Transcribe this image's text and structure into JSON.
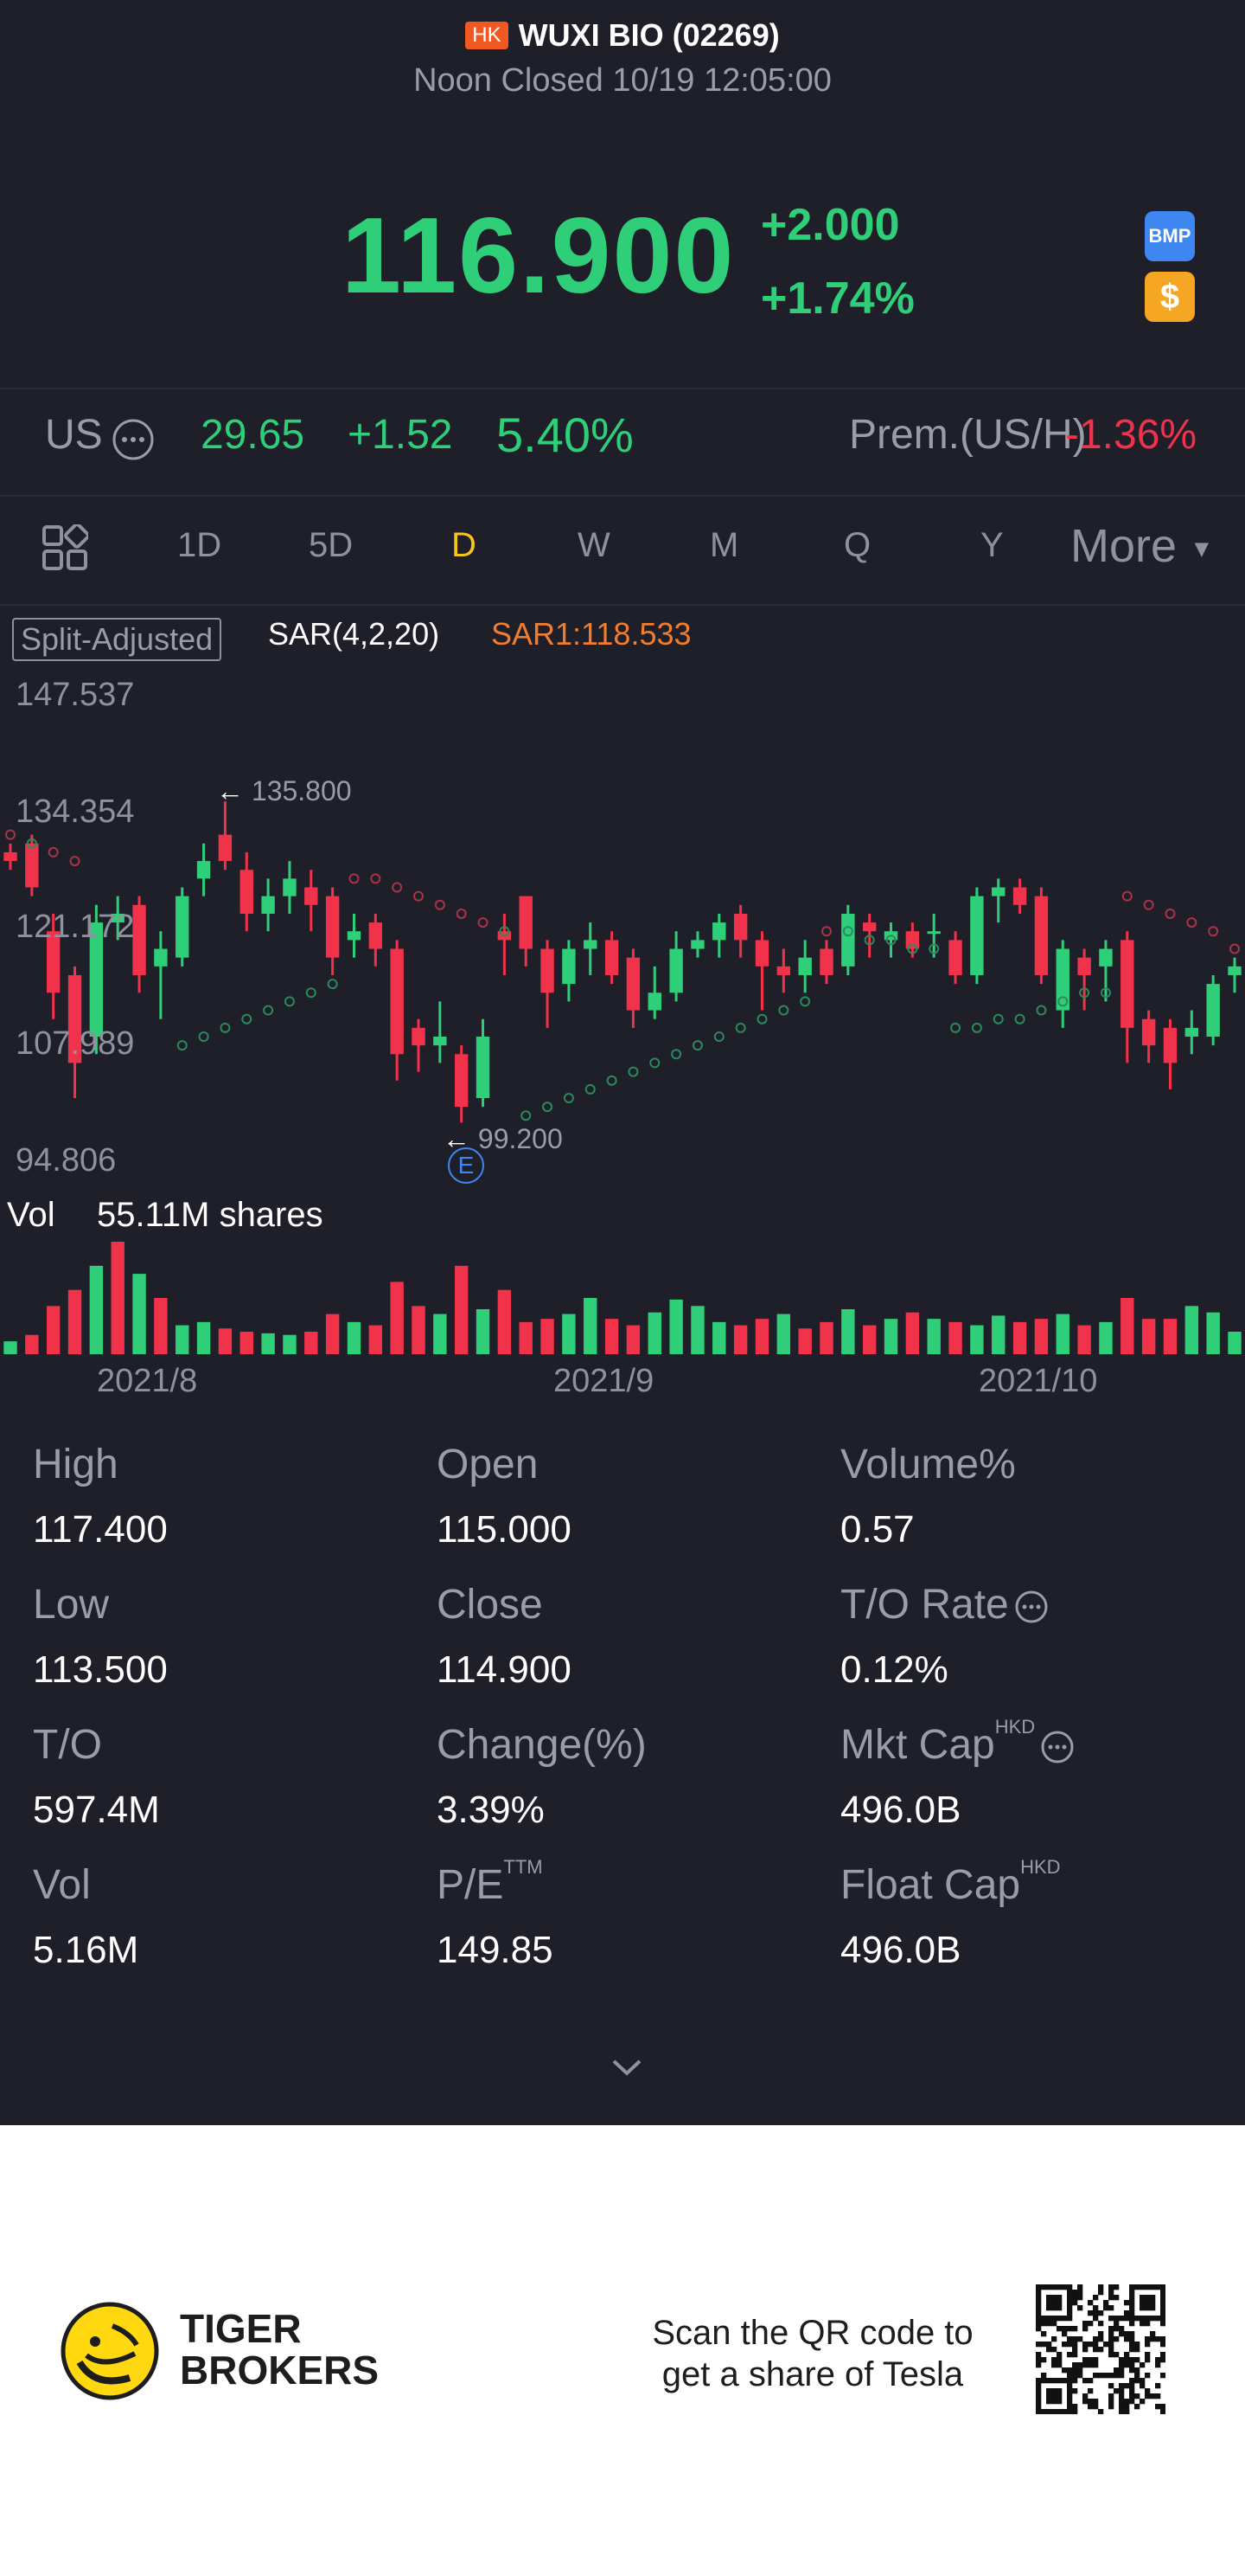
{
  "header": {
    "market_badge": "HK",
    "title": "WUXI BIO (02269)",
    "subtitle": "Noon Closed 10/19 12:05:00"
  },
  "quote": {
    "price": "116.900",
    "change": "+2.000",
    "change_pct": "+1.74%",
    "badge_bmp": "BMP",
    "badge_dollar": "$"
  },
  "us_row": {
    "label": "US",
    "price": "29.65",
    "change": "+1.52",
    "change_pct": "5.40%",
    "premium_label": "Prem.(US/H)",
    "premium_value": "-1.36%"
  },
  "tabs": {
    "items": [
      "1D",
      "5D",
      "D",
      "W",
      "M",
      "Q",
      "Y"
    ],
    "active": "D",
    "more": "More"
  },
  "chart": {
    "split_label": "Split-Adjusted",
    "indicator": "SAR(4,2,20)",
    "indicator_value": "SAR1:118.533",
    "y_labels": [
      "147.537",
      "134.354",
      "121.172",
      "107.989",
      "94.806"
    ],
    "high_marker": "135.800",
    "low_marker": "99.200",
    "event_marker": "E",
    "vol_label": "Vol",
    "vol_value": "55.11M shares",
    "x_labels": [
      "2021/8",
      "2021/9",
      "2021/10"
    ],
    "up_color": "#2fcf7a",
    "down_color": "#f0324b"
  },
  "chart_data": {
    "type": "candlestick",
    "y_axis_ticks": [
      147.537,
      134.354,
      121.172,
      107.989,
      94.806
    ],
    "ylim": [
      94.806,
      147.537
    ],
    "x_tick_labels": [
      "2021/8",
      "2021/9",
      "2021/10"
    ],
    "marked_high": 135.8,
    "marked_low": 99.2,
    "sar_last": 118.533,
    "candles": [
      {
        "o": 130,
        "c": 129,
        "h": 131,
        "l": 128
      },
      {
        "o": 131,
        "c": 126,
        "h": 132,
        "l": 125
      },
      {
        "o": 121,
        "c": 114,
        "h": 123,
        "l": 111
      },
      {
        "o": 116,
        "c": 106,
        "h": 117,
        "l": 102
      },
      {
        "o": 109,
        "c": 122,
        "h": 124,
        "l": 107
      },
      {
        "o": 122,
        "c": 123,
        "h": 125,
        "l": 120
      },
      {
        "o": 124,
        "c": 116,
        "h": 125,
        "l": 114
      },
      {
        "o": 117,
        "c": 119,
        "h": 121,
        "l": 111
      },
      {
        "o": 118,
        "c": 125,
        "h": 126,
        "l": 117
      },
      {
        "o": 127,
        "c": 129,
        "h": 131,
        "l": 125
      },
      {
        "o": 132,
        "c": 129,
        "h": 135.8,
        "l": 128
      },
      {
        "o": 128,
        "c": 123,
        "h": 130,
        "l": 121
      },
      {
        "o": 123,
        "c": 125,
        "h": 127,
        "l": 121
      },
      {
        "o": 125,
        "c": 127,
        "h": 129,
        "l": 123
      },
      {
        "o": 126,
        "c": 124,
        "h": 128,
        "l": 121
      },
      {
        "o": 125,
        "c": 118,
        "h": 126,
        "l": 116
      },
      {
        "o": 120,
        "c": 121,
        "h": 123,
        "l": 118
      },
      {
        "o": 122,
        "c": 119,
        "h": 123,
        "l": 117
      },
      {
        "o": 119,
        "c": 107,
        "h": 120,
        "l": 104
      },
      {
        "o": 110,
        "c": 108,
        "h": 111,
        "l": 105
      },
      {
        "o": 108,
        "c": 109,
        "h": 113,
        "l": 106
      },
      {
        "o": 107,
        "c": 101,
        "h": 108,
        "l": 99.2
      },
      {
        "o": 102,
        "c": 109,
        "h": 111,
        "l": 101
      },
      {
        "o": 121,
        "c": 120,
        "h": 123,
        "l": 116
      },
      {
        "o": 125,
        "c": 119,
        "h": 125,
        "l": 117
      },
      {
        "o": 119,
        "c": 114,
        "h": 120,
        "l": 110
      },
      {
        "o": 115,
        "c": 119,
        "h": 120,
        "l": 113
      },
      {
        "o": 119,
        "c": 120,
        "h": 122,
        "l": 116
      },
      {
        "o": 120,
        "c": 116,
        "h": 121,
        "l": 115
      },
      {
        "o": 118,
        "c": 112,
        "h": 119,
        "l": 110
      },
      {
        "o": 112,
        "c": 114,
        "h": 117,
        "l": 111
      },
      {
        "o": 114,
        "c": 119,
        "h": 121,
        "l": 113
      },
      {
        "o": 119,
        "c": 120,
        "h": 121,
        "l": 118
      },
      {
        "o": 120,
        "c": 122,
        "h": 123,
        "l": 118
      },
      {
        "o": 123,
        "c": 120,
        "h": 124,
        "l": 118
      },
      {
        "o": 120,
        "c": 117,
        "h": 121,
        "l": 112
      },
      {
        "o": 117,
        "c": 116,
        "h": 119,
        "l": 114
      },
      {
        "o": 116,
        "c": 118,
        "h": 120,
        "l": 114
      },
      {
        "o": 119,
        "c": 116,
        "h": 120,
        "l": 115
      },
      {
        "o": 117,
        "c": 123,
        "h": 124,
        "l": 116
      },
      {
        "o": 122,
        "c": 121,
        "h": 123,
        "l": 118
      },
      {
        "o": 120,
        "c": 121,
        "h": 122,
        "l": 118
      },
      {
        "o": 121,
        "c": 119,
        "h": 122,
        "l": 118
      },
      {
        "o": 121,
        "c": 121,
        "h": 123,
        "l": 118
      },
      {
        "o": 120,
        "c": 116,
        "h": 121,
        "l": 115
      },
      {
        "o": 116,
        "c": 125,
        "h": 126,
        "l": 115
      },
      {
        "o": 125,
        "c": 126,
        "h": 127,
        "l": 122
      },
      {
        "o": 126,
        "c": 124,
        "h": 127,
        "l": 123
      },
      {
        "o": 125,
        "c": 116,
        "h": 126,
        "l": 115
      },
      {
        "o": 112,
        "c": 119,
        "h": 120,
        "l": 110
      },
      {
        "o": 118,
        "c": 116,
        "h": 119,
        "l": 112
      },
      {
        "o": 117,
        "c": 119,
        "h": 120,
        "l": 113
      },
      {
        "o": 120,
        "c": 110,
        "h": 121,
        "l": 106
      },
      {
        "o": 111,
        "c": 108,
        "h": 112,
        "l": 106
      },
      {
        "o": 110,
        "c": 106,
        "h": 111,
        "l": 103
      },
      {
        "o": 109,
        "c": 110,
        "h": 112,
        "l": 107
      },
      {
        "o": 109,
        "c": 115,
        "h": 116,
        "l": 108
      },
      {
        "o": 116,
        "c": 117,
        "h": 118,
        "l": 114
      }
    ],
    "volumes": [
      8,
      12,
      30,
      40,
      55,
      70,
      50,
      35,
      18,
      20,
      16,
      14,
      13,
      12,
      14,
      25,
      20,
      18,
      45,
      30,
      25,
      55,
      28,
      40,
      20,
      22,
      25,
      35,
      22,
      18,
      26,
      34,
      30,
      20,
      18,
      22,
      25,
      16,
      20,
      28,
      18,
      22,
      26,
      22,
      20,
      18,
      24,
      20,
      22,
      25,
      18,
      20,
      35,
      22,
      22,
      30,
      26,
      14
    ],
    "volume_up": [
      true,
      false,
      false,
      false,
      true,
      false,
      true,
      false,
      true,
      true,
      false,
      false,
      true,
      true,
      false,
      false,
      true,
      false,
      false,
      false,
      true,
      false,
      true,
      false,
      false,
      false,
      true,
      true,
      false,
      false,
      true,
      true,
      true,
      true,
      false,
      false,
      true,
      false,
      false,
      true,
      false,
      true,
      false,
      true,
      false,
      true,
      true,
      false,
      false,
      true,
      false,
      true,
      false,
      false,
      false,
      true,
      true,
      true
    ],
    "sar": [
      132,
      131,
      130,
      129,
      null,
      null,
      null,
      null,
      108,
      109,
      110,
      111,
      112,
      113,
      114,
      115,
      127,
      127,
      126,
      125,
      124,
      123,
      122,
      121,
      100,
      101,
      102,
      103,
      104,
      105,
      106,
      107,
      108,
      109,
      110,
      111,
      112,
      113,
      121,
      121,
      120,
      120,
      119,
      119,
      110,
      110,
      111,
      111,
      112,
      113,
      114,
      114,
      125,
      124,
      123,
      122,
      121,
      119
    ]
  },
  "stats": [
    {
      "label": "High",
      "value": "117.400"
    },
    {
      "label": "Open",
      "value": "115.000"
    },
    {
      "label": "Volume%",
      "value": "0.57"
    },
    {
      "label": "Low",
      "value": "113.500"
    },
    {
      "label": "Close",
      "value": "114.900"
    },
    {
      "label": "T/O Rate",
      "value": "0.12%"
    },
    {
      "label": "T/O",
      "value": "597.4M"
    },
    {
      "label": "Change(%)",
      "value": "3.39%"
    },
    {
      "label": "Mkt Cap",
      "value": "496.0B"
    },
    {
      "label": "Vol",
      "value": "5.16M"
    },
    {
      "label": "P/E",
      "value": "149.85"
    },
    {
      "label": "Float Cap",
      "value": "496.0B"
    }
  ],
  "stat_sups": {
    "hkd": "HKD",
    "ttm": "TTM"
  },
  "footer": {
    "brand_line1": "TIGER",
    "brand_line2": "BROKERS",
    "qr_line1": "Scan the QR code to",
    "qr_line2": "get a share of Tesla"
  }
}
